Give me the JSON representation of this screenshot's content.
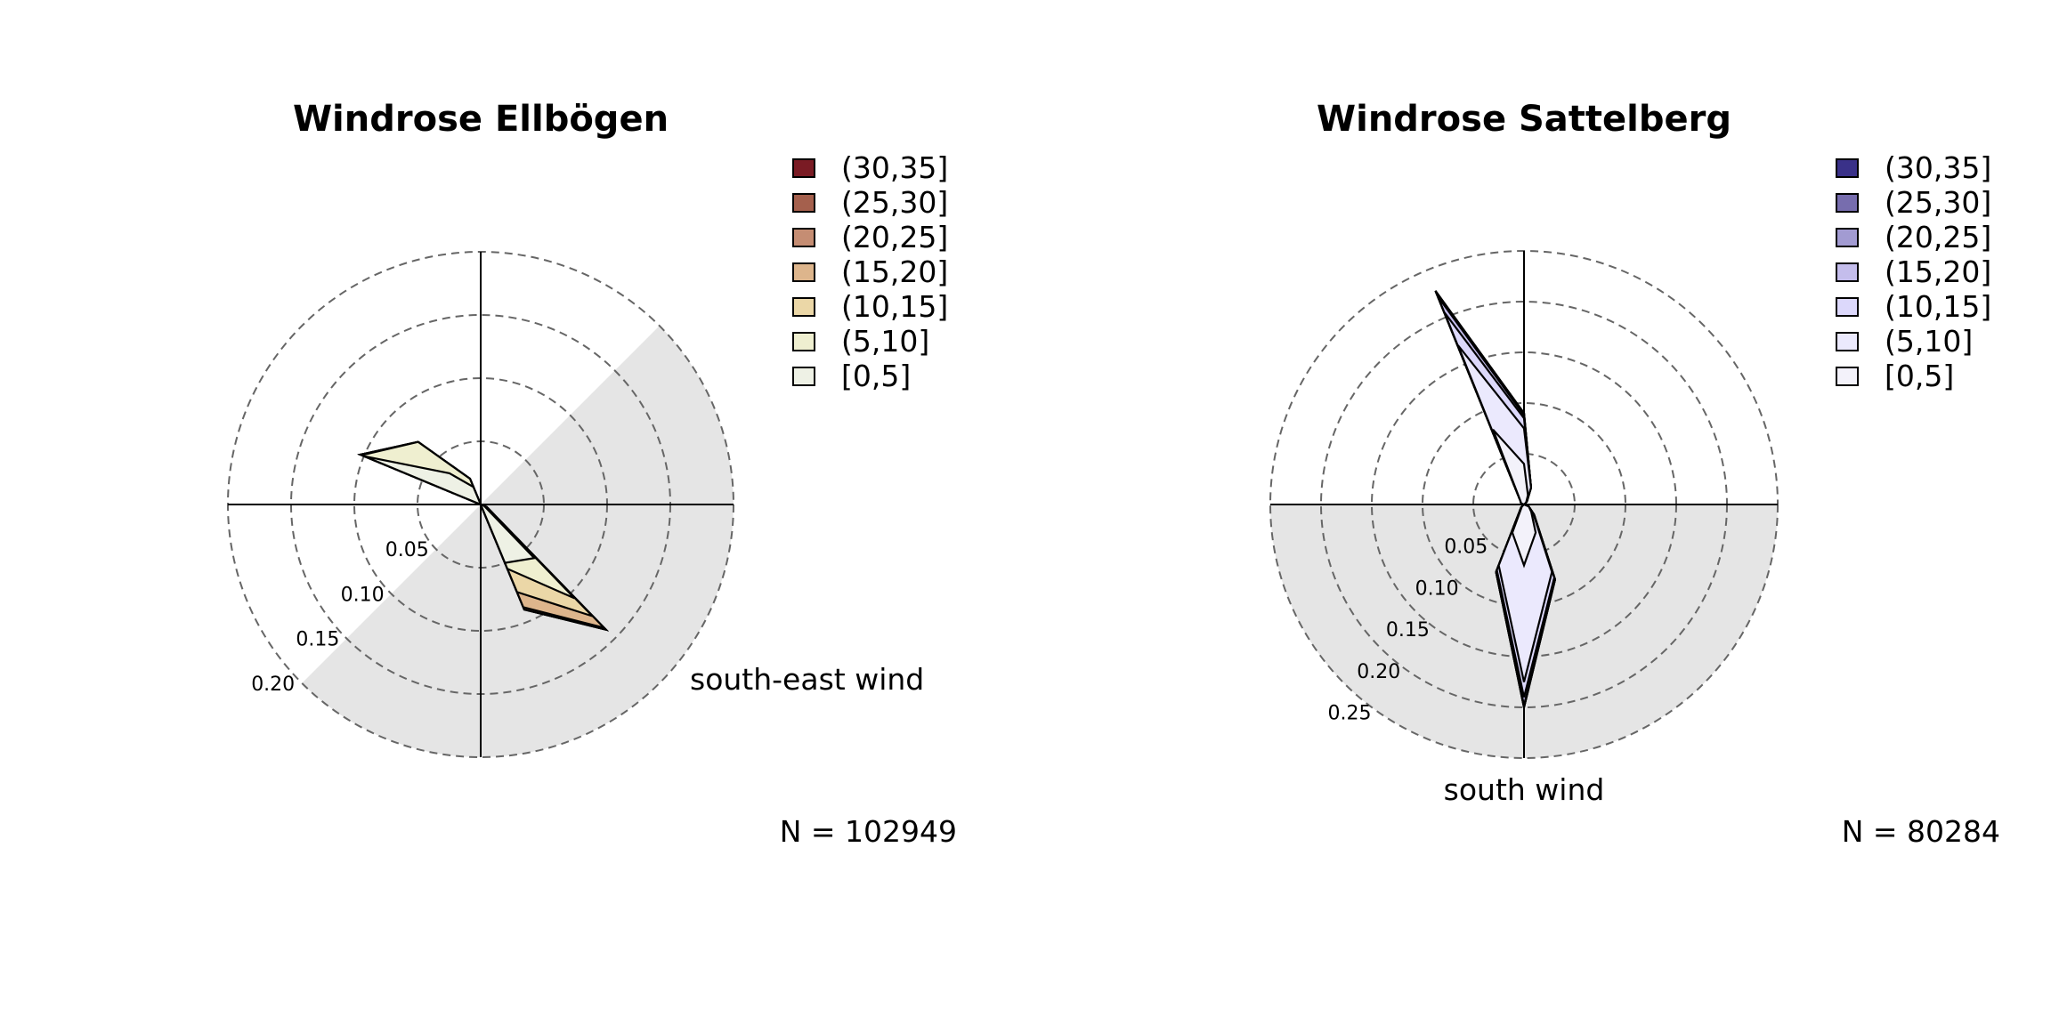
{
  "chart_data": [
    {
      "type": "polar-area",
      "title": "Windrose Ellbögen",
      "legend_position": "top-right",
      "legend": [
        {
          "label": "(30,35]",
          "color": "#7a1b24"
        },
        {
          "label": "(25,30]",
          "color": "#a5604d"
        },
        {
          "label": "(20,25]",
          "color": "#c58d73"
        },
        {
          "label": "(15,20]",
          "color": "#ddb58c"
        },
        {
          "label": "(10,15]",
          "color": "#ebd7a7"
        },
        {
          "label": "(5,10]",
          "color": "#efefd0"
        },
        {
          "label": "[0,5]",
          "color": "#eef1e5"
        }
      ],
      "rings": [
        0.05,
        0.1,
        0.15,
        0.2
      ],
      "ring_labels": [
        "0.05",
        "0.10",
        "0.15",
        "0.20"
      ],
      "shaded_sector": {
        "from_deg": 45,
        "to_deg": 225,
        "label": "south-east wind"
      },
      "n_text": "N = 102949",
      "directions_deg": [
        0,
        22.5,
        45,
        67.5,
        90,
        112.5,
        135,
        157.5,
        180,
        202.5,
        225,
        247.5,
        270,
        292.5,
        315,
        337.5
      ],
      "cumulative_frequencies": [
        [
          0.0,
          0.0,
          0.0,
          0.0,
          0.0,
          0.003,
          0.06,
          0.05,
          0.0,
          0.0,
          0.0,
          0.0,
          0.0,
          0.1,
          0.035,
          0.015
        ],
        [
          0.0,
          0.0,
          0.0,
          0.0,
          0.0,
          0.005,
          0.105,
          0.055,
          0.0,
          0.0,
          0.0,
          0.0,
          0.0,
          0.102,
          0.07,
          0.022
        ],
        [
          0.0,
          0.0,
          0.0,
          0.0,
          0.0,
          0.005,
          0.125,
          0.075,
          0.0,
          0.0,
          0.0,
          0.0,
          0.0,
          0.103,
          0.07,
          0.022
        ],
        [
          0.0,
          0.0,
          0.0,
          0.0,
          0.0,
          0.005,
          0.138,
          0.088,
          0.0,
          0.0,
          0.0,
          0.0,
          0.0,
          0.103,
          0.07,
          0.022
        ],
        [
          0.0,
          0.0,
          0.0,
          0.0,
          0.0,
          0.005,
          0.14,
          0.09,
          0.0,
          0.0,
          0.0,
          0.0,
          0.0,
          0.103,
          0.07,
          0.022
        ],
        [
          0.0,
          0.0,
          0.0,
          0.0,
          0.0,
          0.005,
          0.14,
          0.09,
          0.0,
          0.0,
          0.0,
          0.0,
          0.0,
          0.103,
          0.07,
          0.022
        ],
        [
          0.0,
          0.0,
          0.0,
          0.0,
          0.0,
          0.005,
          0.14,
          0.09,
          0.0,
          0.0,
          0.0,
          0.0,
          0.0,
          0.103,
          0.07,
          0.022
        ]
      ]
    },
    {
      "type": "polar-area",
      "title": "Windrose Sattelberg",
      "legend_position": "top-right",
      "legend": [
        {
          "label": "(30,35]",
          "color": "#3a3189"
        },
        {
          "label": "(25,30]",
          "color": "#776dae"
        },
        {
          "label": "(20,25]",
          "color": "#a29bd2"
        },
        {
          "label": "(15,20]",
          "color": "#c4bdec"
        },
        {
          "label": "(10,15]",
          "color": "#dcd8fb"
        },
        {
          "label": "(5,10]",
          "color": "#ebe9fd"
        },
        {
          "label": "[0,5]",
          "color": "#f3f2fa"
        }
      ],
      "rings": [
        0.05,
        0.1,
        0.15,
        0.2,
        0.25
      ],
      "ring_labels": [
        "0.05",
        "0.10",
        "0.15",
        "0.20",
        "0.25"
      ],
      "shaded_sector": {
        "from_deg": 90,
        "to_deg": 270,
        "label": "south wind"
      },
      "n_text": "N = 80284",
      "directions_deg": [
        0,
        22.5,
        45,
        67.5,
        90,
        112.5,
        135,
        157.5,
        180,
        202.5,
        225,
        247.5,
        270,
        292.5,
        315,
        337.5
      ],
      "cumulative_frequencies": [
        [
          0.04,
          0.01,
          0.003,
          0.0,
          0.0,
          0.005,
          0.01,
          0.03,
          0.06,
          0.03,
          0.003,
          0.0,
          0.0,
          0.003,
          0.005,
          0.08
        ],
        [
          0.075,
          0.018,
          0.004,
          0.0,
          0.0,
          0.005,
          0.013,
          0.072,
          0.175,
          0.065,
          0.004,
          0.0,
          0.0,
          0.003,
          0.005,
          0.17
        ],
        [
          0.085,
          0.018,
          0.004,
          0.0,
          0.0,
          0.005,
          0.014,
          0.078,
          0.19,
          0.07,
          0.004,
          0.0,
          0.0,
          0.003,
          0.005,
          0.205
        ],
        [
          0.088,
          0.018,
          0.004,
          0.0,
          0.0,
          0.005,
          0.014,
          0.08,
          0.198,
          0.072,
          0.004,
          0.0,
          0.0,
          0.003,
          0.005,
          0.222
        ],
        [
          0.09,
          0.018,
          0.004,
          0.0,
          0.0,
          0.005,
          0.014,
          0.08,
          0.2,
          0.072,
          0.004,
          0.0,
          0.0,
          0.003,
          0.005,
          0.228
        ],
        [
          0.09,
          0.018,
          0.004,
          0.0,
          0.0,
          0.005,
          0.014,
          0.08,
          0.2,
          0.072,
          0.004,
          0.0,
          0.0,
          0.003,
          0.005,
          0.228
        ],
        [
          0.09,
          0.018,
          0.004,
          0.0,
          0.0,
          0.005,
          0.014,
          0.08,
          0.2,
          0.072,
          0.004,
          0.0,
          0.0,
          0.003,
          0.005,
          0.228
        ]
      ]
    }
  ]
}
